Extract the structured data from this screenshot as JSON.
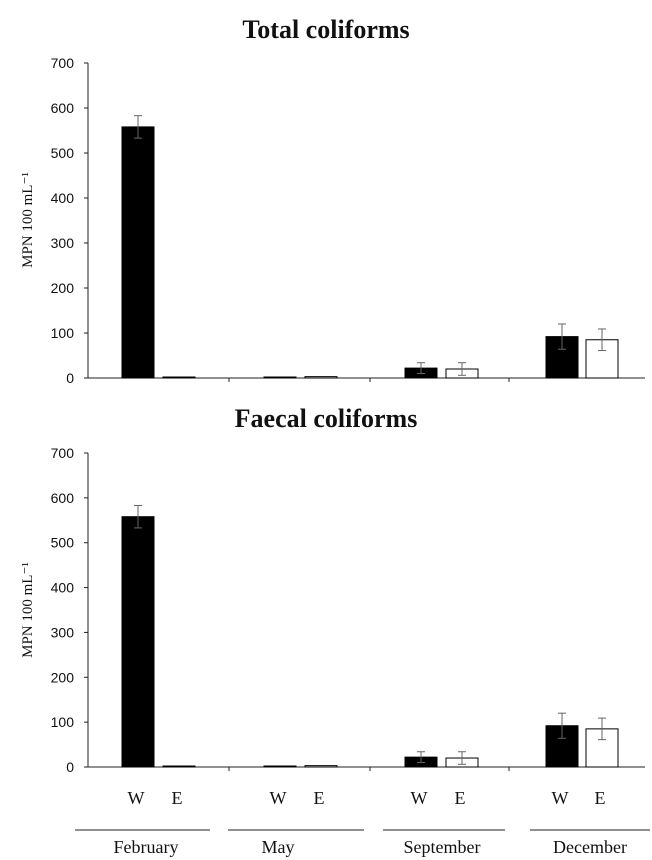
{
  "chart_data": [
    {
      "type": "bar",
      "title": "Total coliforms",
      "ylabel": "MPN 100 mL⁻¹",
      "ylim": [
        0,
        700
      ],
      "yticks": [
        0,
        100,
        200,
        300,
        400,
        500,
        600,
        700
      ],
      "categories": [
        "February",
        "May",
        "September",
        "December"
      ],
      "series": [
        {
          "name": "W",
          "fill": "#000000",
          "values": [
            558,
            1,
            22,
            92
          ],
          "errors": [
            25,
            0,
            12,
            28
          ]
        },
        {
          "name": "E",
          "fill": "#ffffff",
          "values": [
            2,
            3,
            20,
            85
          ],
          "errors": [
            0,
            0,
            14,
            24
          ]
        }
      ]
    },
    {
      "type": "bar",
      "title": "Faecal coliforms",
      "ylabel": "MPN 100 mL⁻¹",
      "ylim": [
        0,
        700
      ],
      "yticks": [
        0,
        100,
        200,
        300,
        400,
        500,
        600,
        700
      ],
      "categories": [
        "February",
        "May",
        "September",
        "December"
      ],
      "series": [
        {
          "name": "W",
          "fill": "#000000",
          "values": [
            558,
            1,
            22,
            92
          ],
          "errors": [
            25,
            0,
            12,
            28
          ]
        },
        {
          "name": "E",
          "fill": "#ffffff",
          "values": [
            2,
            3,
            20,
            85
          ],
          "errors": [
            0,
            0,
            14,
            24
          ]
        }
      ]
    }
  ],
  "bar_labels": [
    "W",
    "E"
  ]
}
